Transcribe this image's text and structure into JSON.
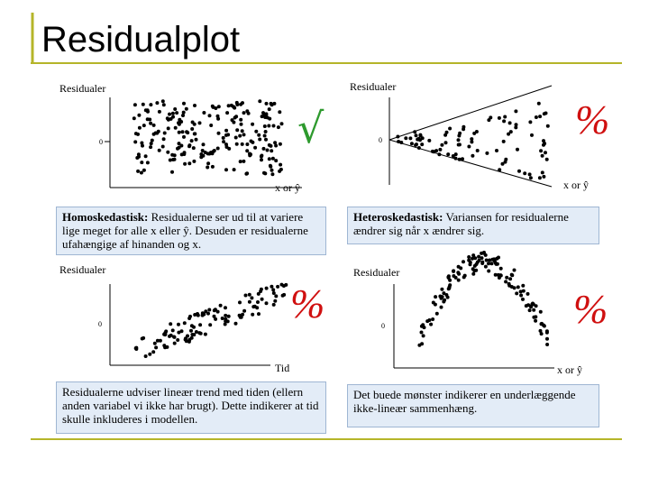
{
  "header": {
    "title": "Residualplot"
  },
  "panels": [
    {
      "y_label": "Residualer",
      "zero_label": "0",
      "x_label": "x or ŷ",
      "verdict": "√",
      "caption": {
        "bold": "Homoskedastisk:",
        "text": "Residualerne ser ud til at variere lige meget for alle x eller ŷ. Desuden er residualerne ufahængige af hinanden og x."
      }
    },
    {
      "y_label": "Residualer",
      "zero_label": "0",
      "x_label": "x or ŷ",
      "verdict": "%",
      "caption": {
        "bold": "Heteroskedastisk:",
        "text": "Variansen for residualerne ændrer sig når x ændrer sig."
      }
    },
    {
      "y_label": "Residualer",
      "zero_label": "0",
      "x_label": "Tid",
      "verdict": "%",
      "caption": {
        "text": "Residualerne udviser lineær trend med tiden (ellern anden variabel vi ikke har brugt). Dette indikerer at tid skulle inkluderes i modellen."
      }
    },
    {
      "y_label": "Residualer",
      "zero_label": "0",
      "x_label": "x or ŷ",
      "verdict": "%",
      "caption": {
        "text": "Det buede mønster indikerer en underlæggende ikke-lineær sammenhæng."
      }
    }
  ]
}
